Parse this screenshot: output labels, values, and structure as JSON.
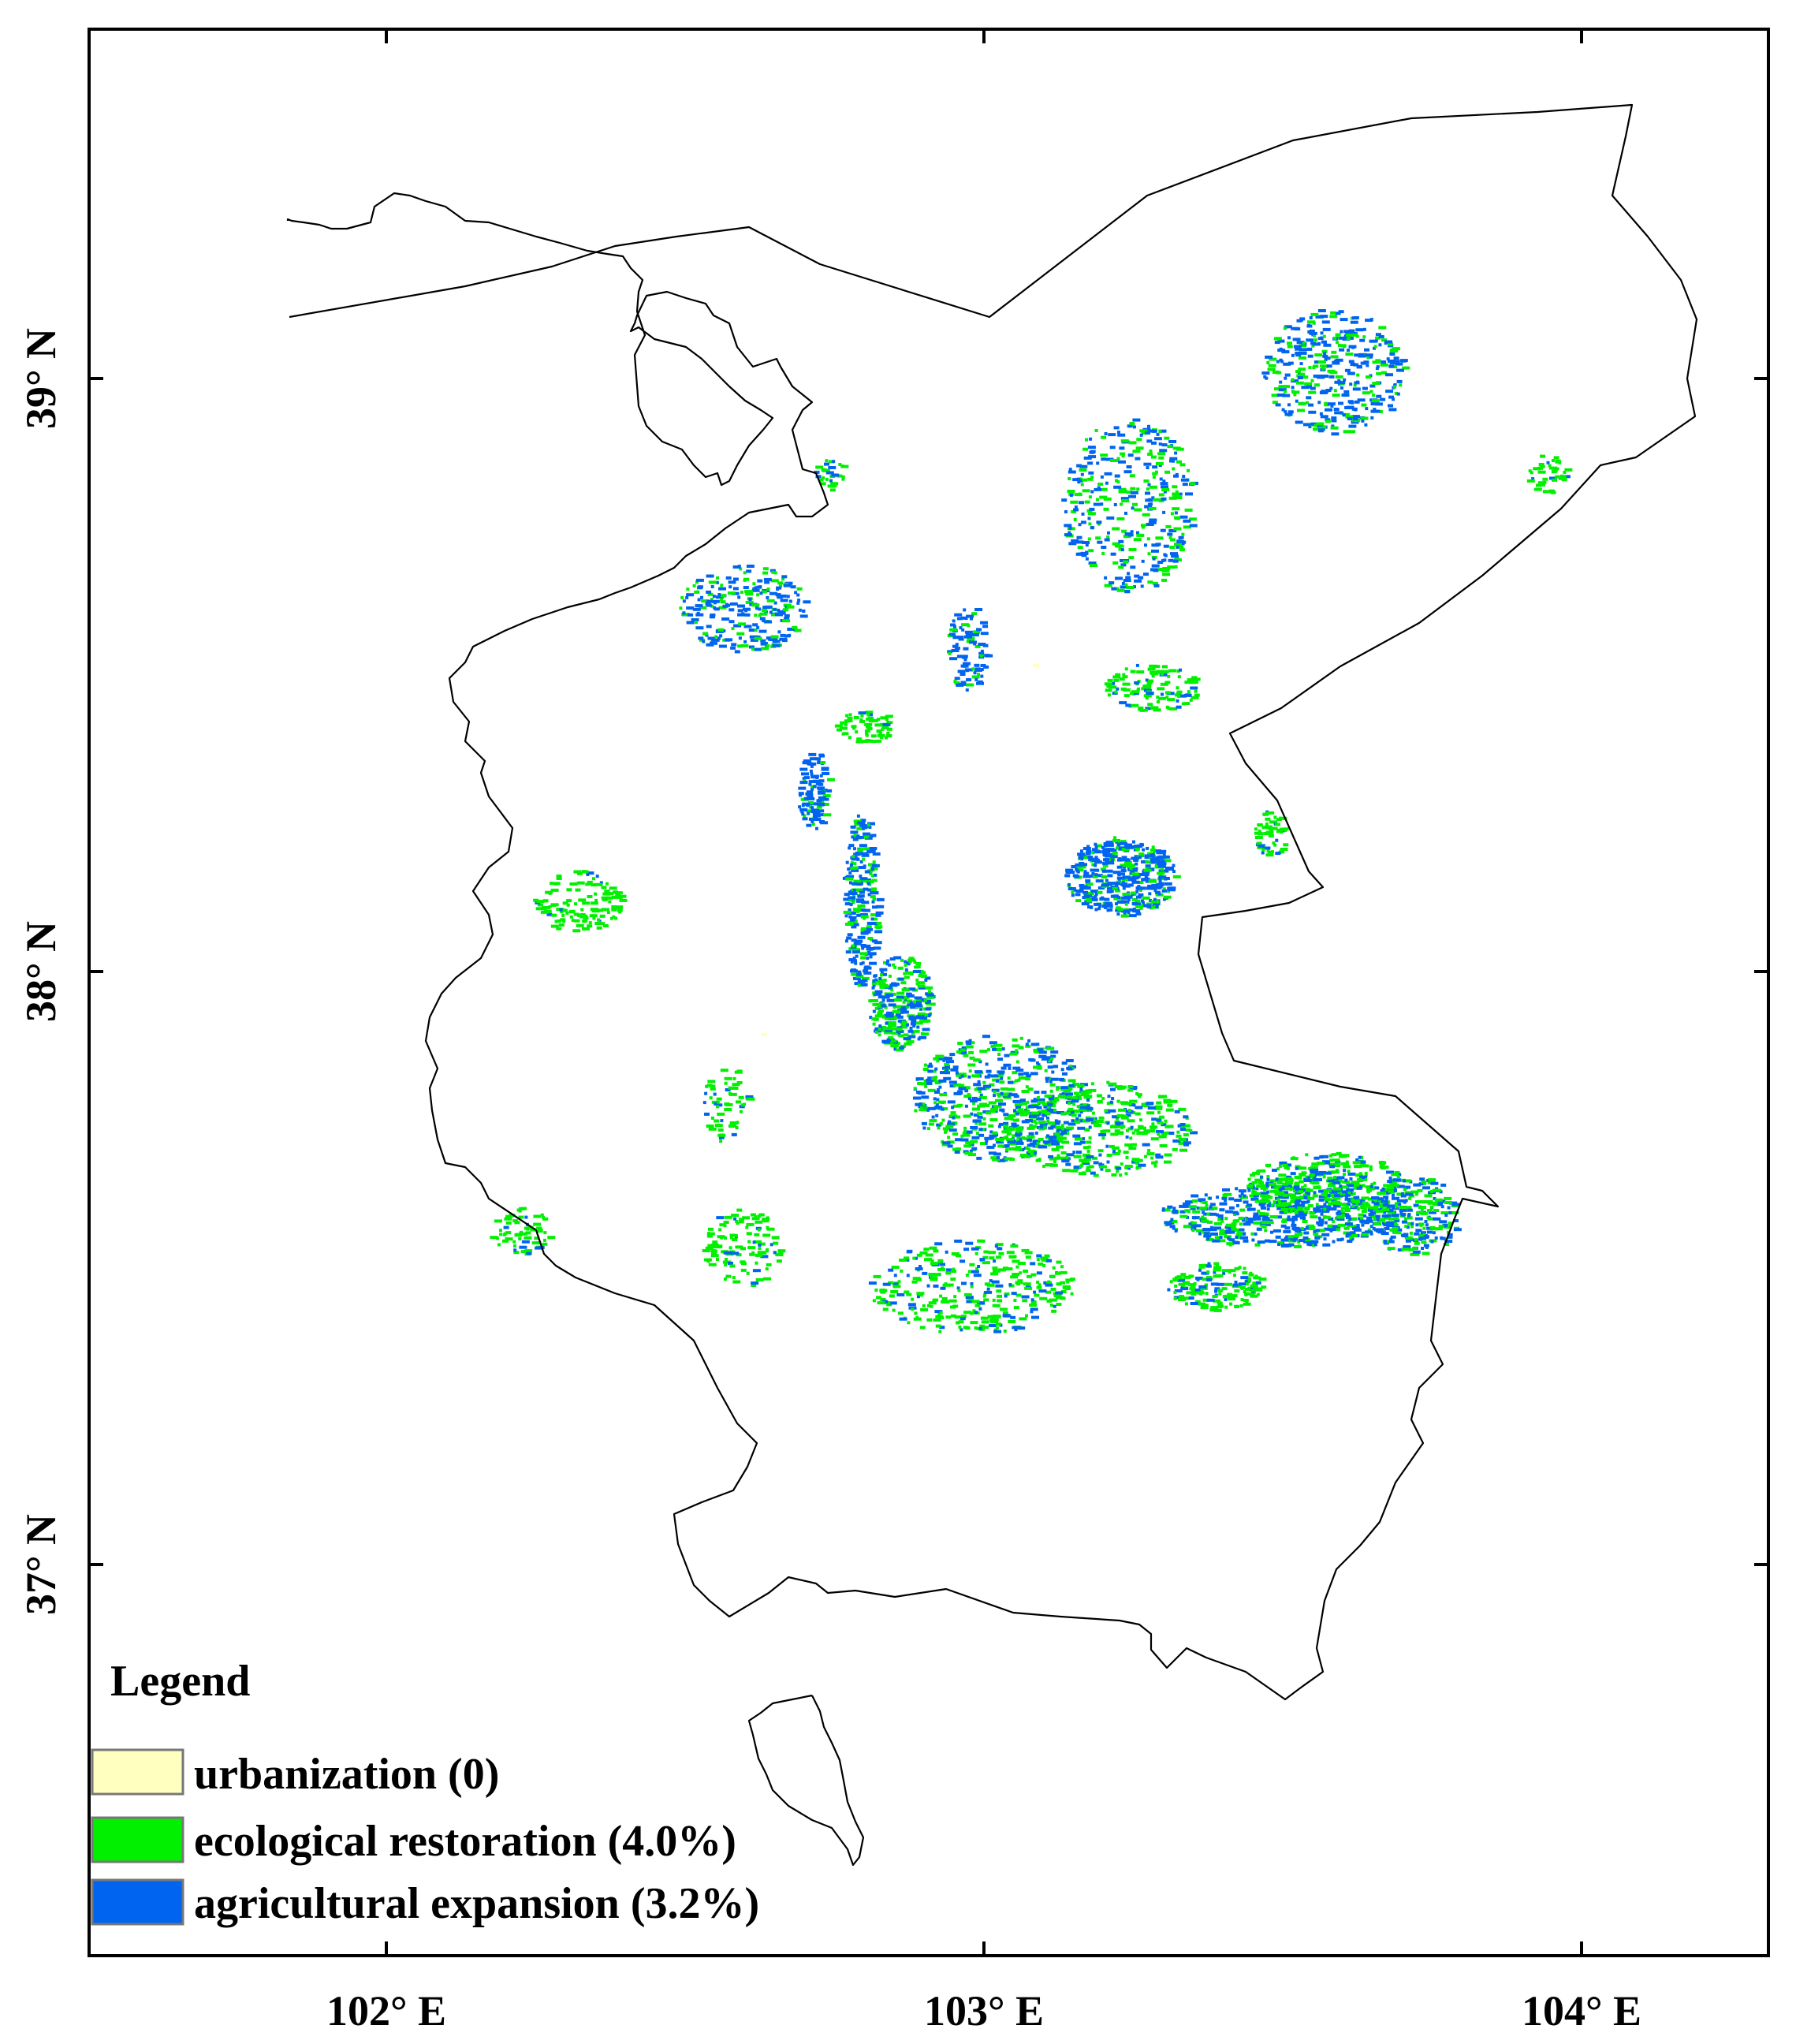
{
  "map": {
    "x_ticks": [
      {
        "value": 102,
        "label": "102° E"
      },
      {
        "value": 103,
        "label": "103° E"
      },
      {
        "value": 104,
        "label": "104° E"
      }
    ],
    "y_ticks": [
      {
        "value": 39,
        "label": "39° N"
      },
      {
        "value": 38,
        "label": "38° N"
      },
      {
        "value": 37,
        "label": "37° N"
      }
    ],
    "lon_range": [
      101.5,
      104.32
    ],
    "lat_range": [
      36.35,
      39.6
    ]
  },
  "legend": {
    "title": "Legend",
    "items": [
      {
        "key": "urbanization",
        "label": "urbanization (0)",
        "color": "#FFFFC0"
      },
      {
        "key": "ecological-restoration",
        "label": "ecological restoration (4.0%)",
        "color": "#00F000"
      },
      {
        "key": "agricultural-expansion",
        "label": "agricultural expansion (3.2%)",
        "color": "#0064F0"
      }
    ]
  },
  "colors": {
    "frame": "#000000",
    "boundary": "#000000",
    "background": "#FFFFFF"
  }
}
